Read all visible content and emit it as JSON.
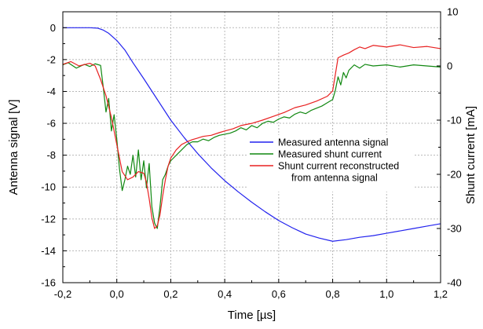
{
  "chart_data": {
    "type": "line",
    "xlabel": "Time [µs]",
    "ylabel_left": "Antenna signal [V]",
    "ylabel_right": "Shunt current [mA]",
    "xlim": [
      -0.2,
      1.2
    ],
    "ylim_left": [
      -16,
      1
    ],
    "ylim_right": [
      -40,
      10
    ],
    "x_ticks": [
      -0.2,
      0.0,
      0.2,
      0.4,
      0.6,
      0.8,
      1.0,
      1.2
    ],
    "x_tick_labels": [
      "-0,2",
      "0,0",
      "0,2",
      "0,4",
      "0,6",
      "0,8",
      "1,0",
      "1,2"
    ],
    "y_left_ticks": [
      0,
      -2,
      -4,
      -6,
      -8,
      -10,
      -12,
      -14,
      -16
    ],
    "y_left_tick_labels": [
      "0",
      "-2",
      "-4",
      "-6",
      "-8",
      "-10",
      "-12",
      "-14",
      "-16"
    ],
    "y_right_ticks": [
      10,
      0,
      -10,
      -20,
      -30,
      -40
    ],
    "y_right_tick_labels": [
      "10",
      "0",
      "-10",
      "-20",
      "-30",
      "-40"
    ],
    "grid": true,
    "legend_position": "center-right",
    "colors": {
      "antenna": "#2222ee",
      "shunt_measured": "#118811",
      "shunt_reconstructed": "#e82020",
      "grid": "#b8b8b8"
    },
    "series": [
      {
        "name": "Measured antenna signal",
        "axis": "left",
        "color": "#2222ee",
        "points": [
          [
            -0.2,
            0.0
          ],
          [
            -0.1,
            0.0
          ],
          [
            -0.07,
            -0.03
          ],
          [
            -0.05,
            -0.15
          ],
          [
            -0.03,
            -0.35
          ],
          [
            0.0,
            -0.8
          ],
          [
            0.03,
            -1.4
          ],
          [
            0.06,
            -2.2
          ],
          [
            0.1,
            -3.2
          ],
          [
            0.15,
            -4.5
          ],
          [
            0.2,
            -5.8
          ],
          [
            0.25,
            -6.9
          ],
          [
            0.3,
            -7.9
          ],
          [
            0.35,
            -8.8
          ],
          [
            0.4,
            -9.6
          ],
          [
            0.45,
            -10.3
          ],
          [
            0.5,
            -10.95
          ],
          [
            0.55,
            -11.55
          ],
          [
            0.6,
            -12.1
          ],
          [
            0.65,
            -12.55
          ],
          [
            0.7,
            -12.95
          ],
          [
            0.75,
            -13.2
          ],
          [
            0.8,
            -13.4
          ],
          [
            0.85,
            -13.3
          ],
          [
            0.9,
            -13.15
          ],
          [
            0.95,
            -13.05
          ],
          [
            1.0,
            -12.9
          ],
          [
            1.05,
            -12.75
          ],
          [
            1.1,
            -12.6
          ],
          [
            1.15,
            -12.45
          ],
          [
            1.2,
            -12.3
          ]
        ]
      },
      {
        "name": "Measured shunt current",
        "axis": "right",
        "color": "#118811",
        "points": [
          [
            -0.2,
            0.2
          ],
          [
            -0.18,
            0.6
          ],
          [
            -0.15,
            -0.4
          ],
          [
            -0.12,
            0.3
          ],
          [
            -0.1,
            -0.1
          ],
          [
            -0.08,
            0.4
          ],
          [
            -0.06,
            0.1
          ],
          [
            -0.05,
            -4
          ],
          [
            -0.04,
            -8.5
          ],
          [
            -0.03,
            -6
          ],
          [
            -0.02,
            -12
          ],
          [
            -0.01,
            -9
          ],
          [
            0.0,
            -13.5
          ],
          [
            0.01,
            -19
          ],
          [
            0.02,
            -23
          ],
          [
            0.03,
            -21
          ],
          [
            0.04,
            -18.5
          ],
          [
            0.05,
            -20
          ],
          [
            0.06,
            -16.5
          ],
          [
            0.07,
            -20.5
          ],
          [
            0.08,
            -15.5
          ],
          [
            0.09,
            -21
          ],
          [
            0.1,
            -17.5
          ],
          [
            0.11,
            -22.5
          ],
          [
            0.12,
            -18
          ],
          [
            0.13,
            -26
          ],
          [
            0.14,
            -29
          ],
          [
            0.15,
            -30
          ],
          [
            0.16,
            -26
          ],
          [
            0.17,
            -21
          ],
          [
            0.18,
            -20
          ],
          [
            0.19,
            -18.5
          ],
          [
            0.2,
            -17.5
          ],
          [
            0.22,
            -16.5
          ],
          [
            0.24,
            -15.5
          ],
          [
            0.26,
            -14.5
          ],
          [
            0.28,
            -14.0
          ],
          [
            0.3,
            -14.0
          ],
          [
            0.32,
            -13.5
          ],
          [
            0.34,
            -13.8
          ],
          [
            0.36,
            -13.2
          ],
          [
            0.38,
            -12.8
          ],
          [
            0.4,
            -12.6
          ],
          [
            0.42,
            -12.4
          ],
          [
            0.44,
            -12.0
          ],
          [
            0.46,
            -11.4
          ],
          [
            0.48,
            -11.8
          ],
          [
            0.5,
            -11.0
          ],
          [
            0.52,
            -11.4
          ],
          [
            0.54,
            -10.6
          ],
          [
            0.56,
            -10.2
          ],
          [
            0.58,
            -10.4
          ],
          [
            0.6,
            -9.8
          ],
          [
            0.62,
            -9.4
          ],
          [
            0.64,
            -9.6
          ],
          [
            0.66,
            -8.9
          ],
          [
            0.68,
            -8.5
          ],
          [
            0.7,
            -8.8
          ],
          [
            0.72,
            -8.2
          ],
          [
            0.74,
            -7.8
          ],
          [
            0.76,
            -7.4
          ],
          [
            0.78,
            -6.8
          ],
          [
            0.8,
            -6.2
          ],
          [
            0.81,
            -4.5
          ],
          [
            0.82,
            -2.0
          ],
          [
            0.83,
            -3.5
          ],
          [
            0.84,
            -1.2
          ],
          [
            0.85,
            -2.2
          ],
          [
            0.86,
            -0.8
          ],
          [
            0.88,
            0.2
          ],
          [
            0.9,
            -0.4
          ],
          [
            0.92,
            0.3
          ],
          [
            0.95,
            0.0
          ],
          [
            1.0,
            0.2
          ],
          [
            1.05,
            -0.2
          ],
          [
            1.1,
            0.2
          ],
          [
            1.15,
            0.0
          ],
          [
            1.2,
            -0.2
          ]
        ]
      },
      {
        "name": "Shunt current reconstructed\nfrom antenna signal",
        "axis": "right",
        "color": "#e82020",
        "points": [
          [
            -0.2,
            0.3
          ],
          [
            -0.17,
            0.8
          ],
          [
            -0.14,
            0.0
          ],
          [
            -0.1,
            0.5
          ],
          [
            -0.08,
            0.0
          ],
          [
            -0.06,
            -2.5
          ],
          [
            -0.04,
            -5.5
          ],
          [
            -0.02,
            -9.5
          ],
          [
            0.0,
            -14.5
          ],
          [
            0.02,
            -19.5
          ],
          [
            0.04,
            -21.0
          ],
          [
            0.06,
            -20.5
          ],
          [
            0.08,
            -19.5
          ],
          [
            0.1,
            -19.8
          ],
          [
            0.11,
            -21.5
          ],
          [
            0.12,
            -24.5
          ],
          [
            0.13,
            -28.0
          ],
          [
            0.14,
            -30.0
          ],
          [
            0.15,
            -29.5
          ],
          [
            0.16,
            -27.5
          ],
          [
            0.17,
            -24.0
          ],
          [
            0.18,
            -21.0
          ],
          [
            0.19,
            -18.5
          ],
          [
            0.2,
            -17.0
          ],
          [
            0.22,
            -15.5
          ],
          [
            0.24,
            -14.5
          ],
          [
            0.26,
            -14.0
          ],
          [
            0.28,
            -13.6
          ],
          [
            0.3,
            -13.3
          ],
          [
            0.32,
            -13.0
          ],
          [
            0.35,
            -12.8
          ],
          [
            0.38,
            -12.3
          ],
          [
            0.4,
            -12.0
          ],
          [
            0.43,
            -11.6
          ],
          [
            0.46,
            -11.0
          ],
          [
            0.5,
            -10.6
          ],
          [
            0.54,
            -10.0
          ],
          [
            0.58,
            -9.3
          ],
          [
            0.62,
            -8.6
          ],
          [
            0.66,
            -7.7
          ],
          [
            0.7,
            -7.2
          ],
          [
            0.74,
            -6.5
          ],
          [
            0.78,
            -5.6
          ],
          [
            0.8,
            -4.6
          ],
          [
            0.82,
            1.5
          ],
          [
            0.84,
            2.0
          ],
          [
            0.86,
            2.4
          ],
          [
            0.88,
            3.0
          ],
          [
            0.9,
            3.5
          ],
          [
            0.92,
            3.2
          ],
          [
            0.95,
            3.8
          ],
          [
            1.0,
            3.5
          ],
          [
            1.05,
            3.9
          ],
          [
            1.1,
            3.4
          ],
          [
            1.15,
            3.6
          ],
          [
            1.2,
            3.2
          ]
        ]
      }
    ]
  }
}
